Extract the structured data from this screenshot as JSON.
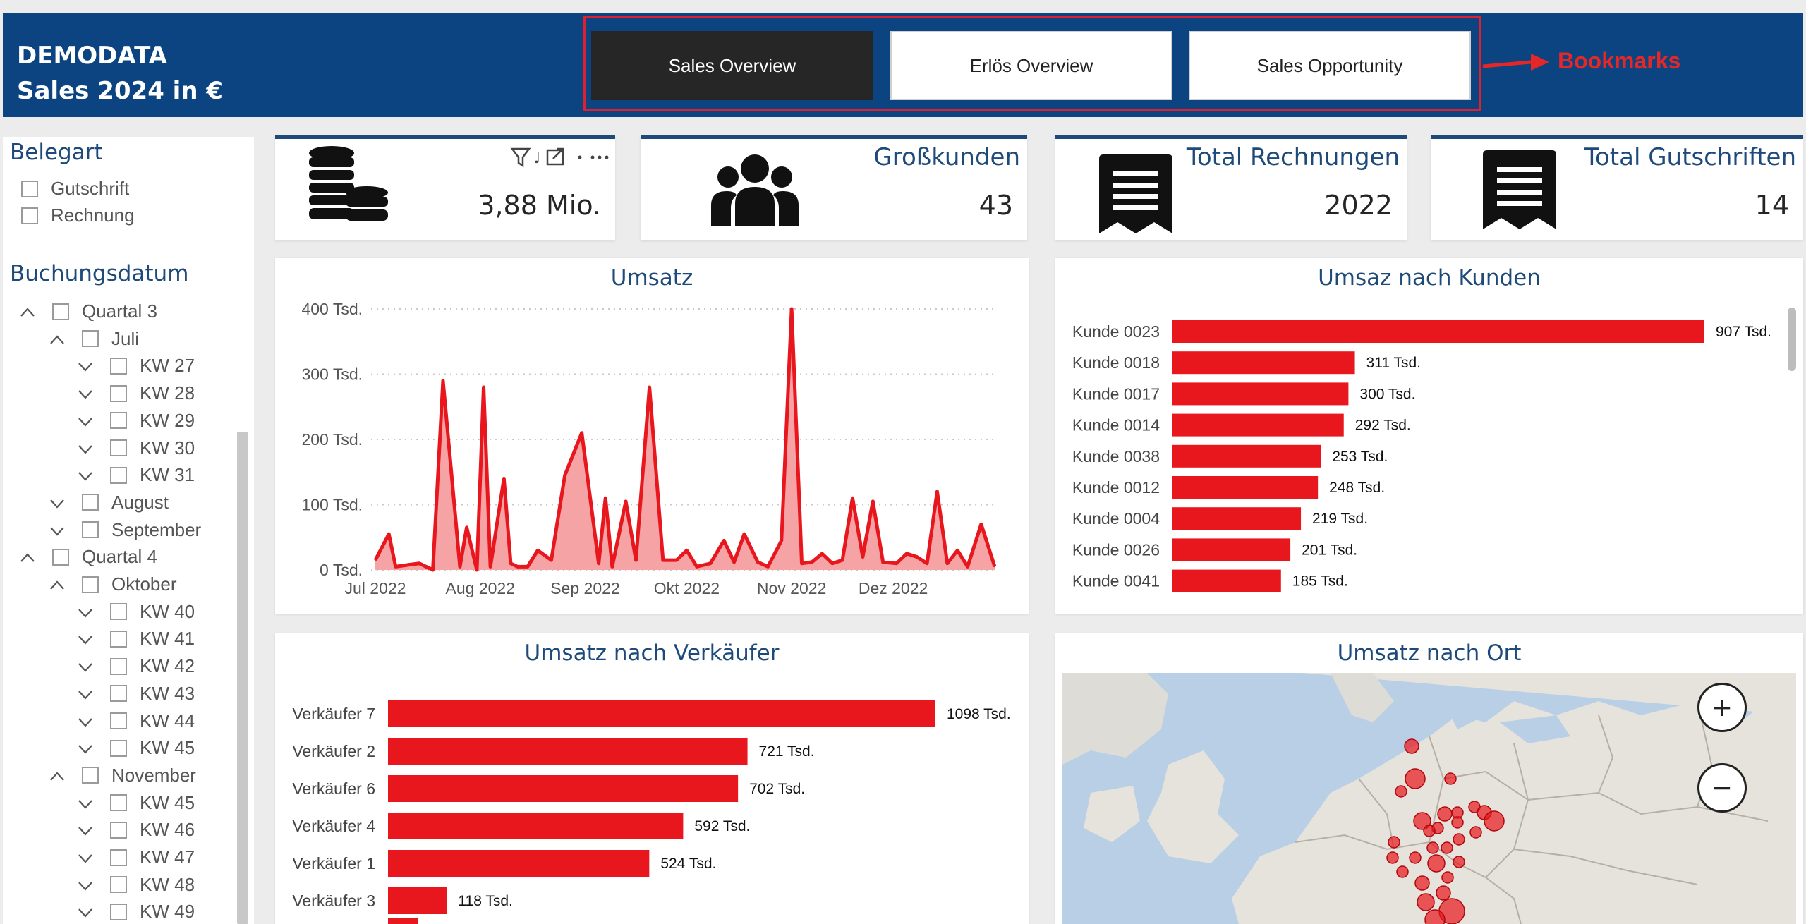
{
  "header": {
    "brand_line1": "DEMODATA",
    "brand_line2": "Sales 2024 in €",
    "bookmarks": [
      "Sales Overview",
      "Erlös Overview",
      "Sales Opportunity"
    ],
    "active_bookmark": "Sales Overview",
    "annotation": "Bookmarks"
  },
  "slicers": {
    "belegart": {
      "title": "Belegart",
      "options": [
        "Gutschrift",
        "Rechnung"
      ]
    },
    "buchungsdatum": {
      "title": "Buchungsdatum",
      "items": [
        {
          "label": "Quartal 3",
          "level": 0,
          "expanded": true
        },
        {
          "label": "Juli",
          "level": 1,
          "expanded": true
        },
        {
          "label": "KW 27",
          "level": 2,
          "expanded": false
        },
        {
          "label": "KW 28",
          "level": 2,
          "expanded": false
        },
        {
          "label": "KW 29",
          "level": 2,
          "expanded": false
        },
        {
          "label": "KW 30",
          "level": 2,
          "expanded": false
        },
        {
          "label": "KW 31",
          "level": 2,
          "expanded": false
        },
        {
          "label": "August",
          "level": 1,
          "expanded": false
        },
        {
          "label": "September",
          "level": 1,
          "expanded": false
        },
        {
          "label": "Quartal 4",
          "level": 0,
          "expanded": true
        },
        {
          "label": "Oktober",
          "level": 1,
          "expanded": true
        },
        {
          "label": "KW 40",
          "level": 2,
          "expanded": false
        },
        {
          "label": "KW 41",
          "level": 2,
          "expanded": false
        },
        {
          "label": "KW 42",
          "level": 2,
          "expanded": false
        },
        {
          "label": "KW 43",
          "level": 2,
          "expanded": false
        },
        {
          "label": "KW 44",
          "level": 2,
          "expanded": false
        },
        {
          "label": "KW 45",
          "level": 2,
          "expanded": false
        },
        {
          "label": "November",
          "level": 1,
          "expanded": true
        },
        {
          "label": "KW 45",
          "level": 2,
          "expanded": false
        },
        {
          "label": "KW 46",
          "level": 2,
          "expanded": false
        },
        {
          "label": "KW 47",
          "level": 2,
          "expanded": false
        },
        {
          "label": "KW 48",
          "level": 2,
          "expanded": false
        },
        {
          "label": "KW 49",
          "level": 2,
          "expanded": false
        }
      ]
    }
  },
  "kpis": [
    {
      "title": "",
      "value": "3,88 Mio.",
      "icon": "coins-icon"
    },
    {
      "title": "Großkunden",
      "value": "43",
      "icon": "people-icon"
    },
    {
      "title": "Total Rechnungen",
      "value": "2022",
      "icon": "receipt-icon"
    },
    {
      "title": "Total Gutschriften",
      "value": "14",
      "icon": "receipt-icon"
    }
  ],
  "colors": {
    "header_bg": "#0b4480",
    "bar_red": "#e8161d",
    "title_blue": "#1e4a7a",
    "annotation_red": "#e52727"
  },
  "chart_data": [
    {
      "type": "area",
      "title": "Umsatz",
      "x_ticks": [
        "Jul 2022",
        "Aug 2022",
        "Sep 2022",
        "Okt 2022",
        "Nov 2022",
        "Dez 2022"
      ],
      "y_ticks": [
        "0 Tsd.",
        "100 Tsd.",
        "200 Tsd.",
        "300 Tsd.",
        "400 Tsd."
      ],
      "ylim": [
        0,
        400
      ],
      "grid": true,
      "x": [
        "2022-07-01",
        "2022-07-05",
        "2022-07-07",
        "2022-07-11",
        "2022-07-14",
        "2022-07-18",
        "2022-07-21",
        "2022-07-26",
        "2022-07-28",
        "2022-07-31",
        "2022-08-02",
        "2022-08-04",
        "2022-08-08",
        "2022-08-10",
        "2022-08-12",
        "2022-08-15",
        "2022-08-18",
        "2022-08-22",
        "2022-08-26",
        "2022-08-31",
        "2022-09-05",
        "2022-09-07",
        "2022-09-09",
        "2022-09-13",
        "2022-09-16",
        "2022-09-20",
        "2022-09-24",
        "2022-09-28",
        "2022-10-01",
        "2022-10-04",
        "2022-10-08",
        "2022-10-12",
        "2022-10-15",
        "2022-10-18",
        "2022-10-22",
        "2022-10-25",
        "2022-10-29",
        "2022-11-01",
        "2022-11-04",
        "2022-11-07",
        "2022-11-10",
        "2022-11-13",
        "2022-11-16",
        "2022-11-19",
        "2022-11-22",
        "2022-11-25",
        "2022-11-28",
        "2022-12-02",
        "2022-12-05",
        "2022-12-08",
        "2022-12-11",
        "2022-12-14",
        "2022-12-17",
        "2022-12-20",
        "2022-12-23",
        "2022-12-27",
        "2022-12-31"
      ],
      "y": [
        15,
        55,
        5,
        8,
        10,
        0,
        290,
        5,
        65,
        0,
        280,
        5,
        140,
        10,
        5,
        5,
        30,
        15,
        145,
        210,
        10,
        110,
        5,
        105,
        15,
        280,
        15,
        15,
        30,
        5,
        10,
        45,
        12,
        55,
        12,
        5,
        45,
        400,
        10,
        12,
        25,
        10,
        15,
        110,
        20,
        105,
        12,
        10,
        25,
        20,
        10,
        120,
        10,
        30,
        5,
        70,
        5
      ],
      "series_name": "Umsatz"
    },
    {
      "type": "bar",
      "title": "Umsaz nach Kunden",
      "categories": [
        "Kunde 0023",
        "Kunde 0018",
        "Kunde 0017",
        "Kunde 0014",
        "Kunde 0038",
        "Kunde 0012",
        "Kunde 0004",
        "Kunde 0026",
        "Kunde 0041"
      ],
      "values": [
        907,
        311,
        300,
        292,
        253,
        248,
        219,
        201,
        185
      ],
      "labels": [
        "907 Tsd.",
        "311 Tsd.",
        "300 Tsd.",
        "292 Tsd.",
        "253 Tsd.",
        "248 Tsd.",
        "219 Tsd.",
        "201 Tsd.",
        "185 Tsd."
      ],
      "orientation": "horizontal"
    },
    {
      "type": "bar",
      "title": "Umsatz nach Verkäufer",
      "categories": [
        "Verkäufer 7",
        "Verkäufer 2",
        "Verkäufer 6",
        "Verkäufer 4",
        "Verkäufer 1",
        "Verkäufer 3"
      ],
      "values": [
        1098,
        721,
        702,
        592,
        524,
        118
      ],
      "labels": [
        "1098 Tsd.",
        "721 Tsd.",
        "702 Tsd.",
        "592 Tsd.",
        "524 Tsd.",
        "118 Tsd."
      ],
      "orientation": "horizontal"
    }
  ],
  "map": {
    "title": "Umsatz nach Ort",
    "zoom_in": "+",
    "zoom_out": "−"
  }
}
